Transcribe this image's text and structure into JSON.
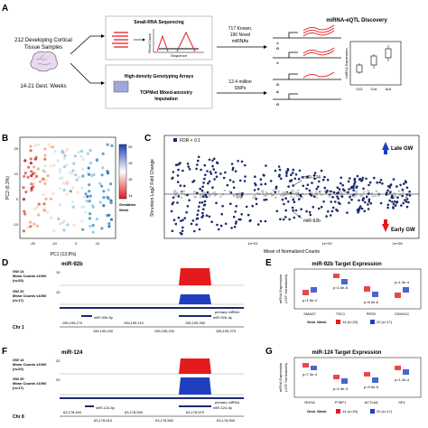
{
  "panels": {
    "a": {
      "letter": "A",
      "cohort_line1": "212 Developing Cortical",
      "cohort_line2": "Tissue Samples",
      "weeks": "14-21 Gest. Weeks",
      "seq_title": "Small-RNA Sequencing",
      "seq_ylabel": "Read Count",
      "seq_xlabel": "Sequence",
      "known": "717 Known,",
      "novel": "190 Novel",
      "mirnas": "miRNAs",
      "geno_title": "High-density Genotyping Arrays",
      "topmed": "TOPMed Mixed-ancestry",
      "imputation": "Imputation",
      "snps1": "12.4 million",
      "snps2": "SNPs",
      "eqtl_title": "miRNA-eQTL Discovery",
      "expr_ylabel": "miRNA Expression",
      "genotypes": [
        "G/G",
        "G/A",
        "A/A"
      ],
      "alleles": [
        "A",
        "G",
        "A",
        "G",
        "A",
        "G"
      ]
    },
    "b": {
      "letter": "B",
      "xlabel": "PC1 (13.8%)",
      "ylabel": "PC2 (6.3%)",
      "xticks": [
        "-20",
        "-10",
        "0",
        "10"
      ],
      "yticks": [
        "-10",
        "0",
        "10",
        "20"
      ],
      "legend_title1": "Gestation",
      "legend_title2": "Week",
      "legend_ticks": [
        "20",
        "18",
        "16",
        "14"
      ]
    },
    "c": {
      "letter": "C",
      "fdr": "FDR < 0.1",
      "xlabel": "Mean of Normalized Counts",
      "ylabel": "Shrunken Log2 Fold Change",
      "xticks": [
        "1e+01",
        "1e+03",
        "1e+05"
      ],
      "late": "Late GW",
      "early": "Early GW",
      "mir124": "miR-124",
      "mir92b": "miR-92b"
    },
    "d": {
      "letter": "D",
      "title": "miR-92b",
      "gw14_1": "GW 14",
      "gw14_2": "Mean Counts x1000",
      "gw14_3": "(n=20)",
      "scale": "10",
      "gw20_1": "GW 20",
      "gw20_2": "Mean Counts x1000",
      "gw20_3": "(n=17)",
      "scale20": "10",
      "transcript": "primary miRNA",
      "arm5p": "miR-92b-5p",
      "arm3p": "miR-92b-3p",
      "chr": "Chr 1",
      "coords_top": [
        "155,195,170",
        "155,195,210",
        "155,195,250"
      ],
      "coords_bot": [
        "155,195,190",
        "155,195,230",
        "155,195,270"
      ]
    },
    "e": {
      "letter": "E",
      "title": "miR-92b Target Expression",
      "ylabel1": "mRNA Expression",
      "ylabel2": "(VST Normalized)",
      "genes": [
        "SMAD7",
        "TSC1",
        "PER2",
        "CDKN1C"
      ],
      "pvals": [
        "p=1.5e-4",
        "p=1.6e-6",
        "p=6.0e-6",
        "p=1.3e-4"
      ],
      "legend_label": "Gest. Week",
      "legend_14": "14 (n=20)",
      "legend_20": "20 (n=17)"
    },
    "f": {
      "letter": "F",
      "title": "miR-124",
      "gw14_1": "GW 14",
      "gw14_2": "Mean Counts x1000",
      "gw14_3": "(n=20)",
      "scale": "20",
      "gw20_1": "GW 20",
      "gw20_2": "Mean Counts x1000",
      "gw20_3": "(n=17)",
      "scale20": "20",
      "transcript": "primary miRNA",
      "arm5p": "miR-124-5p",
      "arm3p": "miR-124-3p",
      "chr": "Chr 8",
      "coords_top": [
        "63,178,490",
        "63,178,530",
        "63,178,570"
      ],
      "coords_bot": [
        "63,178,510",
        "63,178,550",
        "63,178,590"
      ]
    },
    "g": {
      "letter": "G",
      "title": "miR-124 Target Expression",
      "ylabel1": "mRNA Expression",
      "ylabel2": "(VST Normalized)",
      "genes": [
        "RHOA",
        "PTBP1",
        "ACTL6A",
        "SP1"
      ],
      "pvals": [
        "p=7.3e-4",
        "p=1.5e-3",
        "p=9.9e-5",
        "p=1.2e-4"
      ],
      "legend_label": "Gest. Week",
      "legend_14": "14 (n=20)",
      "legend_20": "20 (n=17)"
    }
  },
  "colors": {
    "red": "#e41a1c",
    "blue": "#1f3fbf",
    "navy": "#1a2a6c",
    "grey": "#c8c8c8"
  }
}
